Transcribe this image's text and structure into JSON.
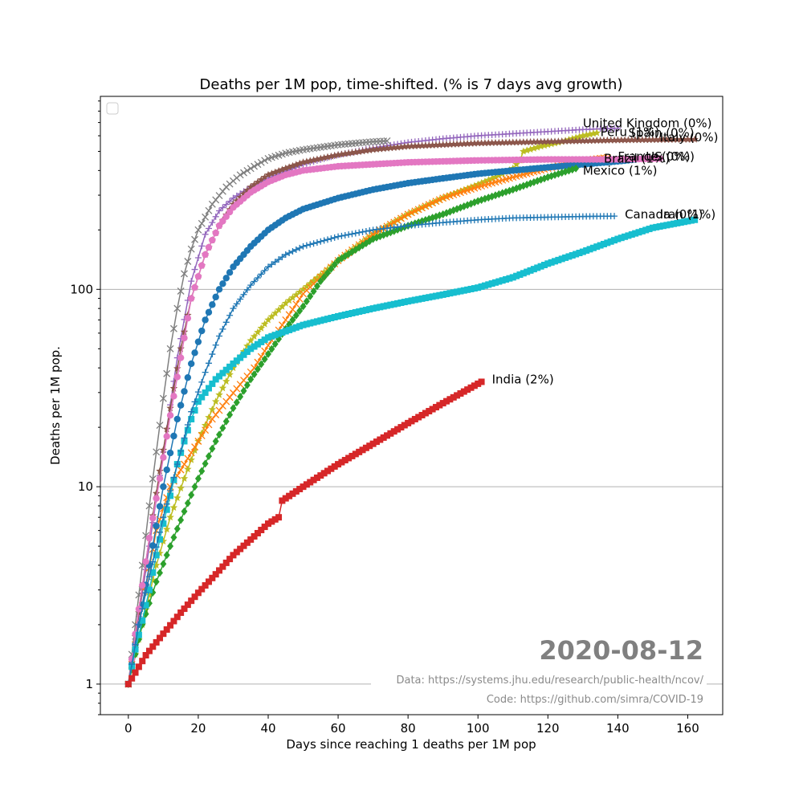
{
  "chart_data": {
    "type": "line",
    "title": "Deaths per 1M pop, time-shifted. (% is 7 days avg growth)",
    "xlabel": "Days since reaching 1 deaths per 1M pop",
    "ylabel": "Deaths per 1M pop.",
    "xlim": [
      -8,
      170
    ],
    "ylim": [
      0.7,
      950
    ],
    "yscale": "log",
    "x_ticks": [
      0,
      20,
      40,
      60,
      80,
      100,
      120,
      140,
      160
    ],
    "y_ticks": [
      {
        "value": 1,
        "label": "1"
      },
      {
        "value": 10,
        "label": "10"
      },
      {
        "value": 100,
        "label": "100"
      }
    ],
    "grid": "horizontal",
    "legend": "top-left (empty)",
    "date_stamp": "2020-08-12",
    "credits": {
      "data": "Data: https://systems.jhu.edu/research/public-health/ncov/",
      "code": "Code: https://github.com/simra/COVID-19"
    },
    "series": [
      {
        "name": "United Kingdom",
        "label": "United Kingdom (0%)",
        "color": "#9467bd",
        "marker": "plus",
        "label_x": 130,
        "label_y": 695,
        "points": [
          [
            0,
            1
          ],
          [
            3,
            2.2
          ],
          [
            6,
            5
          ],
          [
            10,
            15
          ],
          [
            14,
            45
          ],
          [
            18,
            110
          ],
          [
            22,
            190
          ],
          [
            26,
            250
          ],
          [
            30,
            290
          ],
          [
            35,
            330
          ],
          [
            40,
            365
          ],
          [
            50,
            430
          ],
          [
            60,
            480
          ],
          [
            70,
            520
          ],
          [
            80,
            555
          ],
          [
            90,
            580
          ],
          [
            100,
            600
          ],
          [
            110,
            615
          ],
          [
            120,
            630
          ],
          [
            130,
            645
          ],
          [
            140,
            655
          ]
        ]
      },
      {
        "name": "Peru",
        "label": "Peru (1%)",
        "color": "#bcbd22",
        "marker": "star",
        "label_x": 135,
        "label_y": 625,
        "points": [
          [
            0,
            1
          ],
          [
            4,
            2
          ],
          [
            8,
            4
          ],
          [
            12,
            7
          ],
          [
            16,
            11
          ],
          [
            20,
            17
          ],
          [
            25,
            27
          ],
          [
            30,
            40
          ],
          [
            35,
            55
          ],
          [
            40,
            70
          ],
          [
            45,
            85
          ],
          [
            50,
            100
          ],
          [
            60,
            140
          ],
          [
            70,
            190
          ],
          [
            80,
            240
          ],
          [
            90,
            290
          ],
          [
            100,
            340
          ],
          [
            105,
            370
          ],
          [
            110,
            410
          ],
          [
            112,
            450
          ],
          [
            113,
            500
          ],
          [
            118,
            530
          ],
          [
            124,
            560
          ],
          [
            130,
            600
          ],
          [
            134,
            620
          ]
        ]
      },
      {
        "name": "Spain",
        "label": "Spain (0%)",
        "color": "#8c564b",
        "marker": "star",
        "label_x": 143,
        "label_y": 620,
        "points": [
          [
            0,
            1
          ],
          [
            3,
            2.3
          ],
          [
            6,
            5.5
          ],
          [
            9,
            12
          ],
          [
            12,
            25
          ],
          [
            15,
            50
          ],
          [
            18,
            90
          ],
          [
            22,
            150
          ],
          [
            26,
            210
          ],
          [
            30,
            270
          ],
          [
            35,
            330
          ],
          [
            40,
            380
          ],
          [
            45,
            410
          ],
          [
            50,
            440
          ],
          [
            60,
            480
          ],
          [
            70,
            510
          ],
          [
            80,
            530
          ],
          [
            100,
            550
          ],
          [
            120,
            560
          ],
          [
            140,
            570
          ],
          [
            162,
            575
          ]
        ]
      },
      {
        "name": "Italy",
        "label": "Italy (0%)",
        "color": "#7f7f7f",
        "marker": "x",
        "label_x": 152,
        "label_y": 590,
        "points": [
          [
            0,
            1
          ],
          [
            2,
            2
          ],
          [
            4,
            4
          ],
          [
            6,
            8
          ],
          [
            8,
            15
          ],
          [
            10,
            28
          ],
          [
            12,
            50
          ],
          [
            14,
            80
          ],
          [
            16,
            120
          ],
          [
            18,
            160
          ],
          [
            20,
            200
          ],
          [
            24,
            270
          ],
          [
            28,
            330
          ],
          [
            32,
            380
          ],
          [
            36,
            420
          ],
          [
            40,
            460
          ],
          [
            45,
            490
          ],
          [
            50,
            510
          ],
          [
            60,
            540
          ],
          [
            70,
            560
          ],
          [
            74,
            565
          ]
        ]
      },
      {
        "name": "France",
        "label": "France (0%)",
        "color": "#ff7f0e",
        "marker": "x",
        "label_x": 140,
        "label_y": 470,
        "points": [
          [
            0,
            1
          ],
          [
            4,
            2.5
          ],
          [
            8,
            6
          ],
          [
            12,
            10
          ],
          [
            16,
            13
          ],
          [
            20,
            17
          ],
          [
            24,
            22
          ],
          [
            28,
            27
          ],
          [
            32,
            33
          ],
          [
            36,
            40
          ],
          [
            40,
            52
          ],
          [
            45,
            70
          ],
          [
            50,
            95
          ],
          [
            60,
            140
          ],
          [
            70,
            190
          ],
          [
            80,
            240
          ],
          [
            90,
            290
          ],
          [
            100,
            330
          ],
          [
            110,
            370
          ],
          [
            120,
            410
          ],
          [
            130,
            450
          ],
          [
            137,
            465
          ]
        ]
      },
      {
        "name": "US",
        "label": "US (0%)",
        "color": "#1f77b4",
        "marker": "circle",
        "label_x": 148,
        "label_y": 470,
        "points": [
          [
            0,
            1
          ],
          [
            3,
            2
          ],
          [
            6,
            4
          ],
          [
            10,
            10
          ],
          [
            14,
            22
          ],
          [
            18,
            42
          ],
          [
            22,
            70
          ],
          [
            26,
            100
          ],
          [
            30,
            130
          ],
          [
            35,
            165
          ],
          [
            40,
            200
          ],
          [
            45,
            230
          ],
          [
            50,
            255
          ],
          [
            60,
            290
          ],
          [
            70,
            320
          ],
          [
            80,
            345
          ],
          [
            90,
            365
          ],
          [
            100,
            385
          ],
          [
            110,
            400
          ],
          [
            120,
            415
          ],
          [
            130,
            430
          ],
          [
            140,
            445
          ],
          [
            145,
            455
          ]
        ]
      },
      {
        "name": "Brazil",
        "label": "Brazil (1%)",
        "color": "#2ca02c",
        "marker": "diamond",
        "label_x": 136,
        "label_y": 460,
        "points": [
          [
            0,
            1
          ],
          [
            4,
            2
          ],
          [
            8,
            3.3
          ],
          [
            12,
            5
          ],
          [
            16,
            7.5
          ],
          [
            20,
            11
          ],
          [
            25,
            17
          ],
          [
            30,
            25
          ],
          [
            35,
            35
          ],
          [
            40,
            47
          ],
          [
            45,
            63
          ],
          [
            50,
            82
          ],
          [
            55,
            110
          ],
          [
            60,
            140
          ],
          [
            70,
            180
          ],
          [
            80,
            210
          ],
          [
            90,
            240
          ],
          [
            100,
            280
          ],
          [
            110,
            320
          ],
          [
            120,
            370
          ],
          [
            128,
            410
          ]
        ]
      },
      {
        "name": "Mexico",
        "label": "Mexico (1%)",
        "color": "#e377c2",
        "marker": "circle",
        "label_x": 130,
        "label_y": 400,
        "points": [
          [
            0,
            1
          ],
          [
            3,
            2.4
          ],
          [
            6,
            5.5
          ],
          [
            9,
            11
          ],
          [
            12,
            23
          ],
          [
            15,
            45
          ],
          [
            18,
            90
          ],
          [
            22,
            150
          ],
          [
            26,
            210
          ],
          [
            30,
            260
          ],
          [
            35,
            310
          ],
          [
            40,
            350
          ],
          [
            45,
            380
          ],
          [
            50,
            400
          ],
          [
            60,
            420
          ],
          [
            70,
            430
          ],
          [
            80,
            440
          ],
          [
            100,
            450
          ],
          [
            120,
            455
          ],
          [
            140,
            455
          ],
          [
            152,
            460
          ]
        ]
      },
      {
        "name": "Iran",
        "label": "Iran (1%)",
        "color": "#17becf",
        "marker": "square",
        "label_x": 152,
        "label_y": 240,
        "points": [
          [
            0,
            1
          ],
          [
            2,
            1.5
          ],
          [
            4,
            2.1
          ],
          [
            6,
            3
          ],
          [
            8,
            4.5
          ],
          [
            10,
            6.5
          ],
          [
            12,
            9
          ],
          [
            14,
            13
          ],
          [
            16,
            17
          ],
          [
            18,
            22
          ],
          [
            20,
            27
          ],
          [
            25,
            35
          ],
          [
            30,
            42
          ],
          [
            35,
            50
          ],
          [
            40,
            57
          ],
          [
            50,
            66
          ],
          [
            60,
            73
          ],
          [
            70,
            80
          ],
          [
            80,
            87
          ],
          [
            90,
            94
          ],
          [
            100,
            102
          ],
          [
            110,
            115
          ],
          [
            120,
            135
          ],
          [
            130,
            155
          ],
          [
            140,
            180
          ],
          [
            150,
            205
          ],
          [
            162,
            225
          ]
        ]
      },
      {
        "name": "Canada",
        "label": "Canada (0%)",
        "color": "#1f77b4",
        "marker": "plus",
        "label_x": 142,
        "label_y": 240,
        "points": [
          [
            0,
            1
          ],
          [
            3,
            2
          ],
          [
            6,
            3.5
          ],
          [
            10,
            7
          ],
          [
            14,
            13
          ],
          [
            18,
            24
          ],
          [
            22,
            38
          ],
          [
            26,
            58
          ],
          [
            30,
            80
          ],
          [
            35,
            105
          ],
          [
            40,
            130
          ],
          [
            45,
            150
          ],
          [
            50,
            165
          ],
          [
            60,
            185
          ],
          [
            70,
            200
          ],
          [
            80,
            210
          ],
          [
            90,
            218
          ],
          [
            100,
            225
          ],
          [
            110,
            230
          ],
          [
            120,
            232
          ],
          [
            130,
            234
          ],
          [
            139,
            235
          ]
        ]
      },
      {
        "name": "India",
        "label": "India (2%)",
        "color": "#d62728",
        "marker": "square",
        "label_x": 104,
        "label_y": 35,
        "points": [
          [
            0,
            1
          ],
          [
            5,
            1.4
          ],
          [
            10,
            1.8
          ],
          [
            15,
            2.3
          ],
          [
            20,
            2.9
          ],
          [
            25,
            3.6
          ],
          [
            30,
            4.5
          ],
          [
            35,
            5.4
          ],
          [
            40,
            6.5
          ],
          [
            43,
            7
          ],
          [
            44,
            8.5
          ],
          [
            50,
            10
          ],
          [
            60,
            13
          ],
          [
            70,
            16.5
          ],
          [
            80,
            21
          ],
          [
            90,
            26.5
          ],
          [
            101,
            34
          ]
        ]
      }
    ]
  }
}
